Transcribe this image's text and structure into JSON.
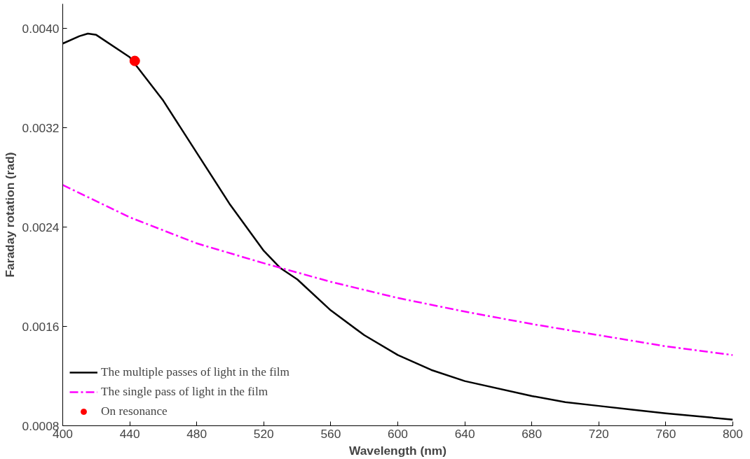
{
  "chart_data": {
    "type": "line",
    "xlabel": "Wavelength (nm)",
    "ylabel": "Faraday rotation (rad)",
    "xlim": [
      400,
      800
    ],
    "xticks": [
      400,
      440,
      480,
      520,
      560,
      600,
      640,
      680,
      720,
      760,
      800
    ],
    "ylim": [
      0.0008,
      0.0042
    ],
    "yticks": [
      0.0008,
      0.0016,
      0.0024,
      0.0032,
      {
        "value": 0.004,
        "label": "0.0040"
      }
    ],
    "grid": false,
    "legend": "bottom left",
    "series": [
      {
        "name": "The multiple passes of light in the film",
        "color": "#000000",
        "line_style": "solid",
        "marker": "none",
        "x": [
          400,
          410,
          415,
          420,
          440,
          460,
          480,
          500,
          520,
          530,
          540,
          560,
          580,
          600,
          620,
          640,
          680,
          700,
          720,
          740,
          760,
          800
        ],
        "values": [
          0.00388,
          0.00394,
          0.00396,
          0.00395,
          0.00377,
          0.00342,
          0.003,
          0.00258,
          0.00221,
          0.00207,
          0.00198,
          0.00173,
          0.00153,
          0.00137,
          0.00125,
          0.00116,
          0.00104,
          0.00099,
          0.00096,
          0.00093,
          0.0009,
          0.00085
        ]
      },
      {
        "name": "The single pass of light in the film",
        "color": "#ff00ff",
        "line_style": "dashed",
        "marker": "none",
        "x": [
          400,
          440,
          480,
          520,
          560,
          600,
          640,
          680,
          720,
          760,
          800
        ],
        "values": [
          0.00274,
          0.00248,
          0.00227,
          0.00211,
          0.00196,
          0.00183,
          0.00172,
          0.00162,
          0.00153,
          0.00144,
          0.00137
        ]
      },
      {
        "name": "On resonance",
        "type": "scatter",
        "color": "#ff0000",
        "marker": "circle",
        "x": [
          443
        ],
        "values": [
          0.00374
        ]
      }
    ]
  }
}
